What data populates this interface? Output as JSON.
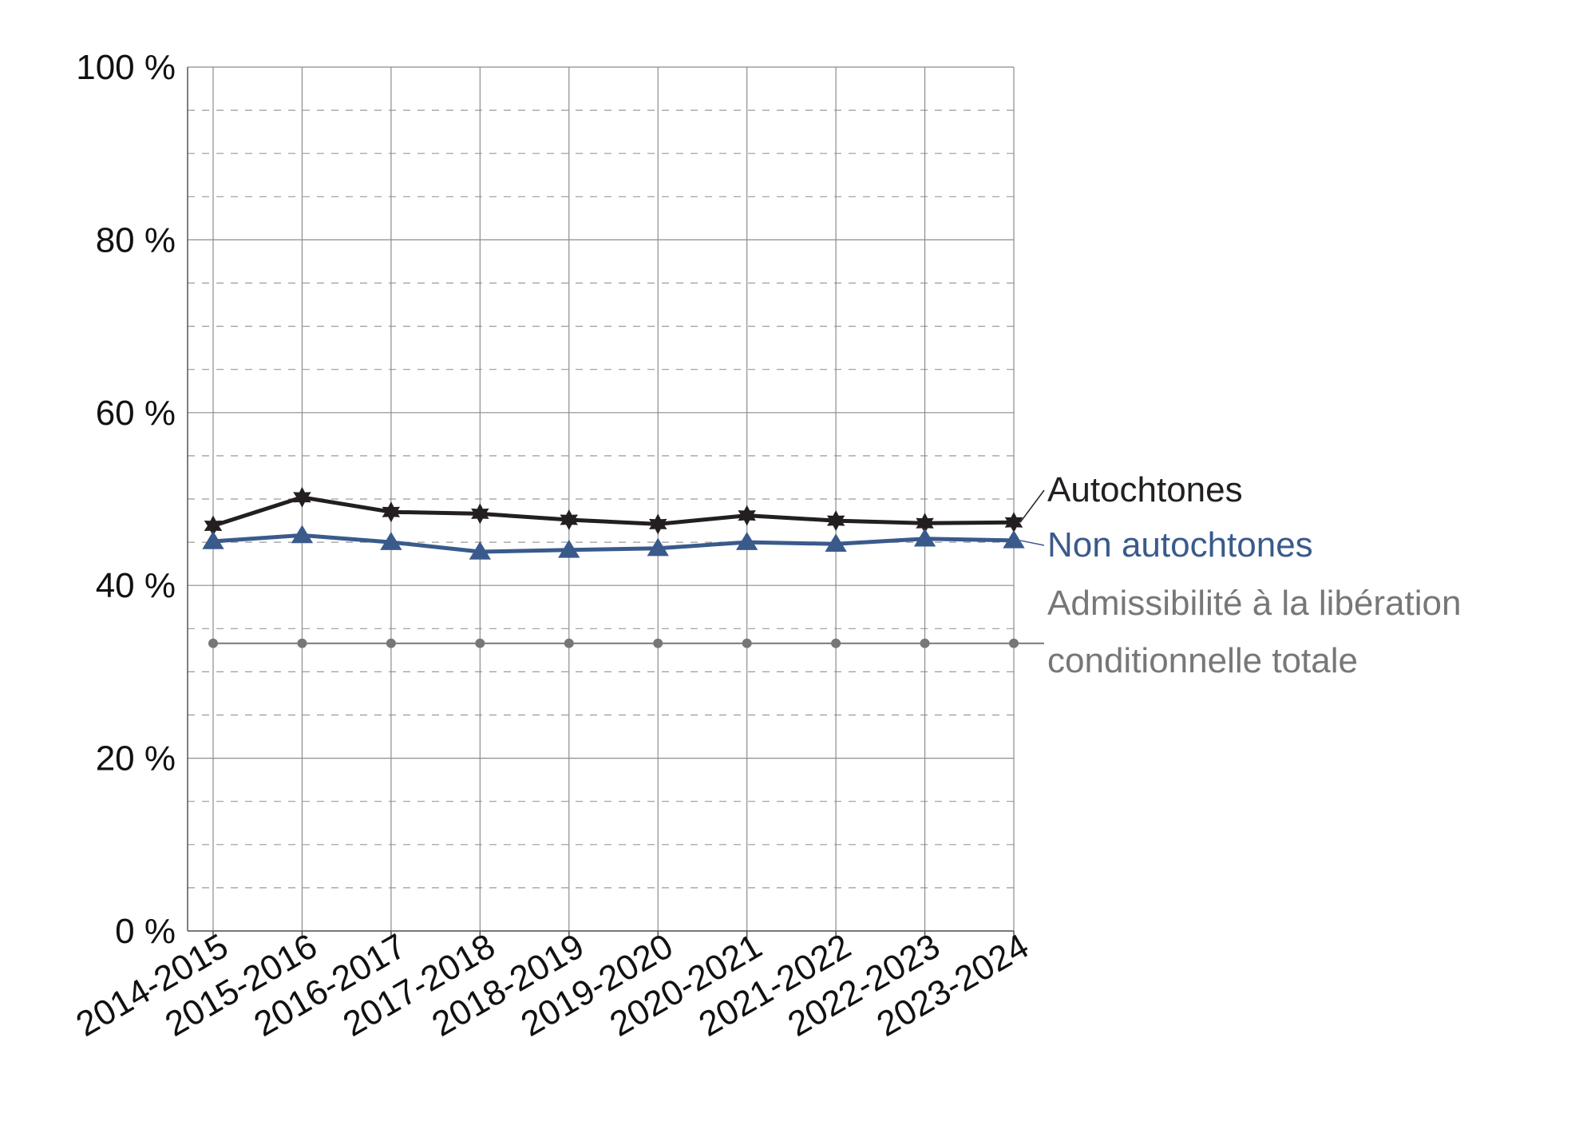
{
  "chart_data": {
    "type": "line",
    "title": "",
    "xlabel": "",
    "ylabel": "",
    "ylim": [
      0,
      100
    ],
    "yticks": [
      0,
      20,
      40,
      60,
      80,
      100
    ],
    "ytick_labels": [
      "0 %",
      "20 %",
      "40 %",
      "60 %",
      "80 %",
      "100 %"
    ],
    "categories": [
      "2014-2015",
      "2015-2016",
      "2016-2017",
      "2017-2018",
      "2018-2019",
      "2019-2020",
      "2020-2021",
      "2021-2022",
      "2022-2023",
      "2023-2024"
    ],
    "grid": true,
    "legend_placement": "right, labels at line ends",
    "series": [
      {
        "name": "Autochtones",
        "values": [
          46.9,
          50.2,
          48.5,
          48.3,
          47.6,
          47.1,
          48.1,
          47.5,
          47.2,
          47.3
        ],
        "color": "#231f20",
        "marker": "star"
      },
      {
        "name": "Non autochtones",
        "values": [
          45.1,
          45.8,
          45.0,
          43.9,
          44.1,
          44.3,
          45.0,
          44.8,
          45.4,
          45.2
        ],
        "color": "#3a5a8c",
        "marker": "triangle"
      },
      {
        "name": "Admissibilité à la libération conditionnelle totale",
        "name_lines": [
          "Admissibilité à la libération",
          "conditionnelle totale"
        ],
        "values": [
          33.3,
          33.3,
          33.3,
          33.3,
          33.3,
          33.3,
          33.3,
          33.3,
          33.3,
          33.3
        ],
        "color": "#777777",
        "marker": "circle"
      }
    ]
  }
}
